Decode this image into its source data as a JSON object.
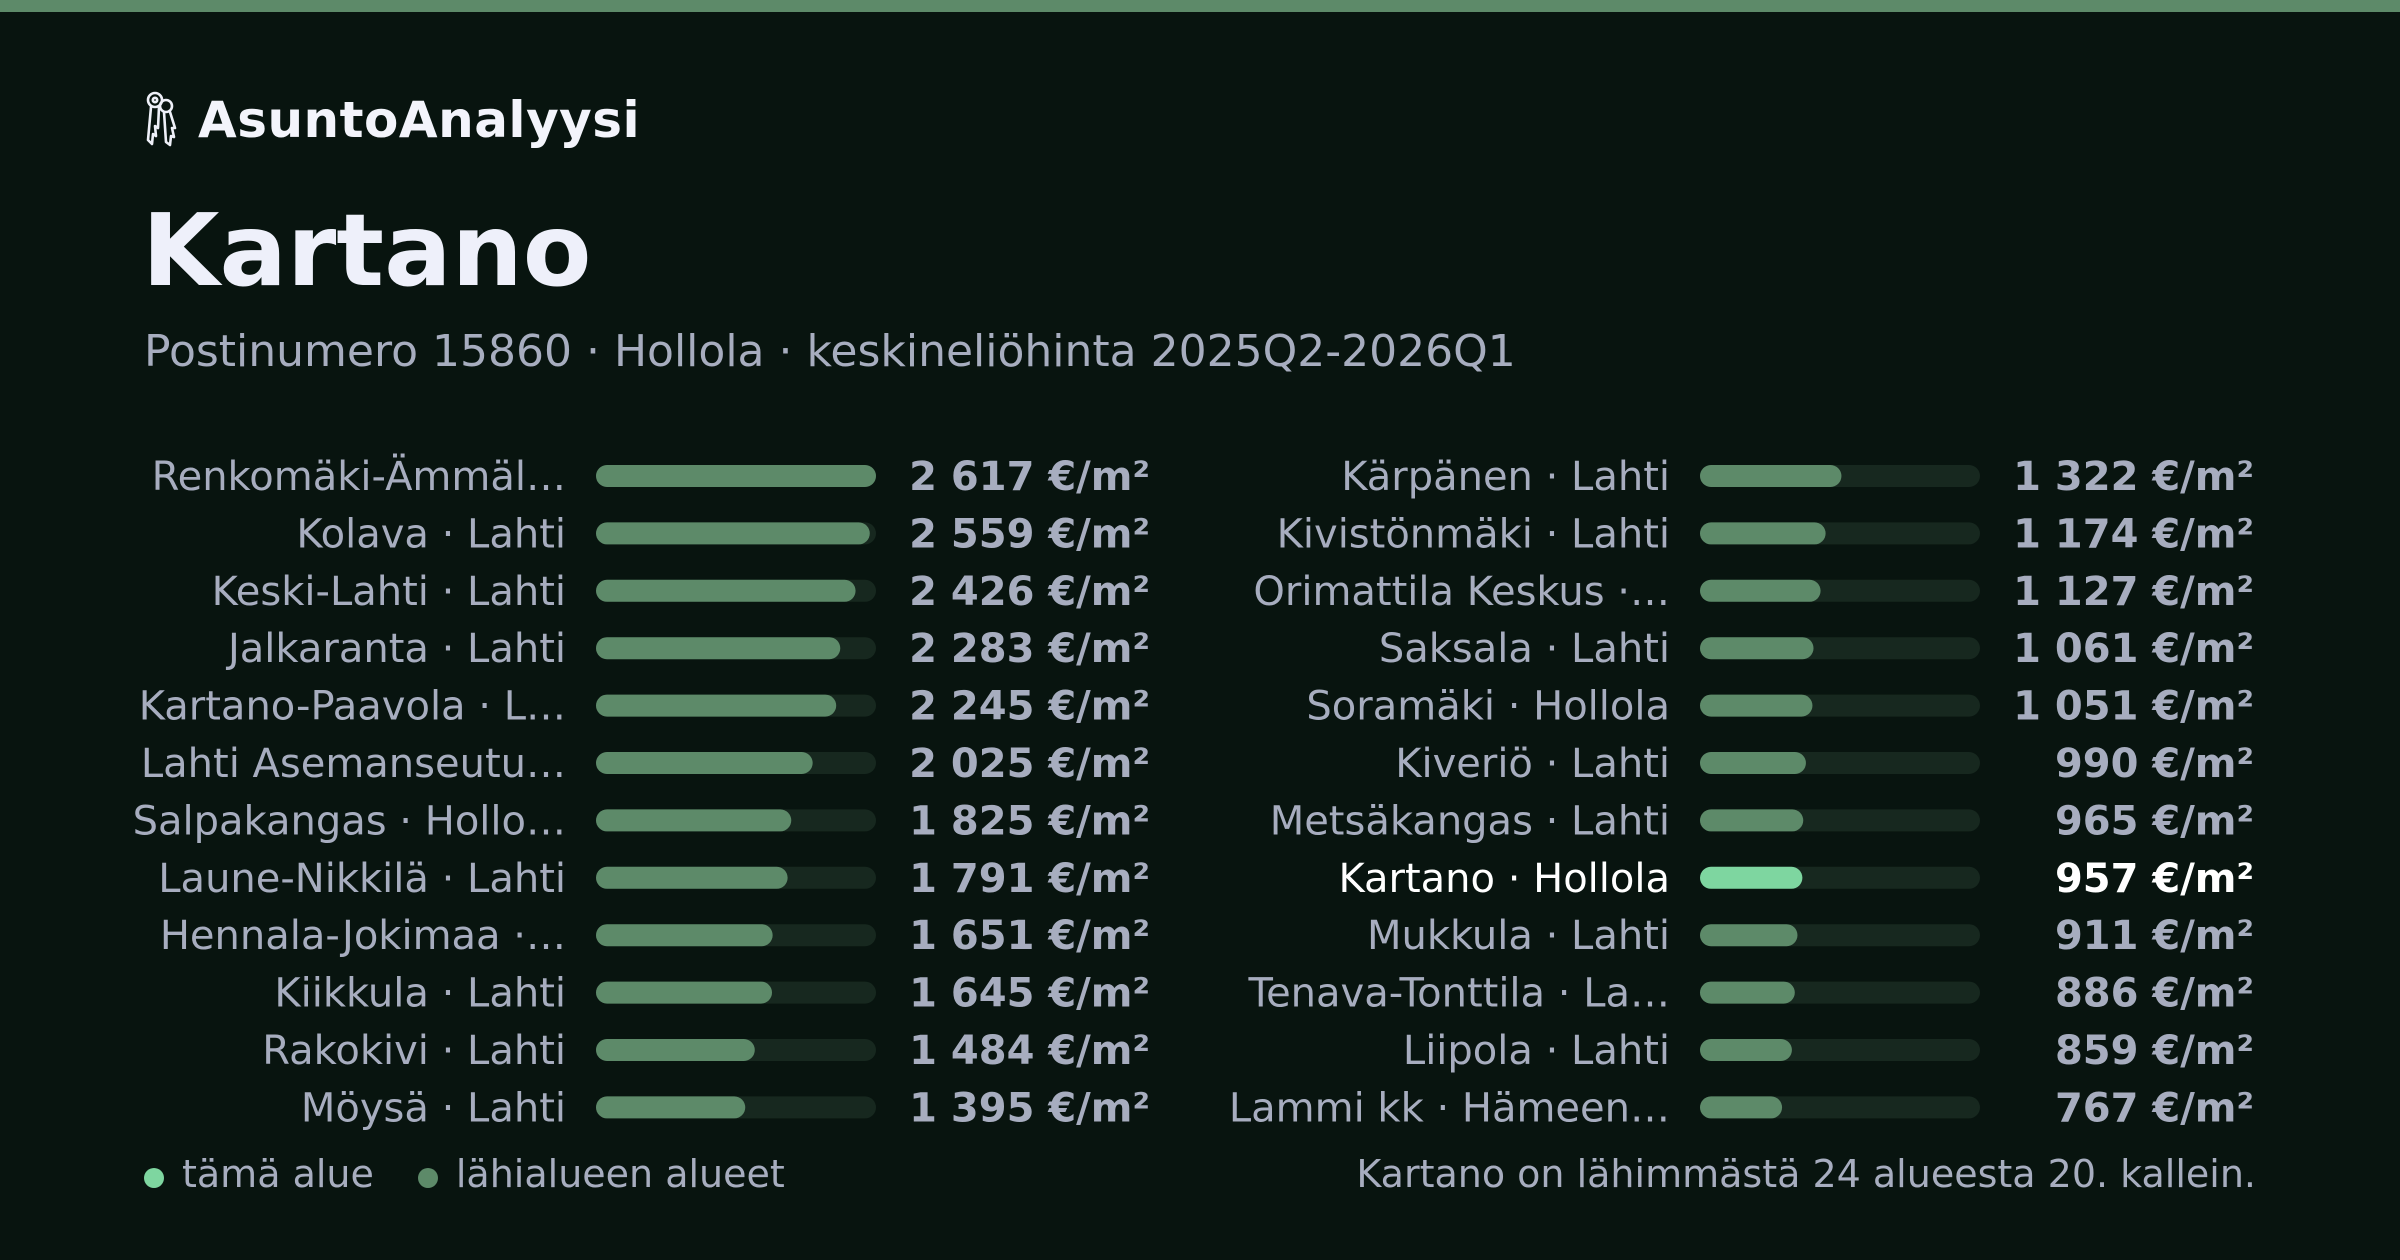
{
  "brand": {
    "name": "AsuntoAnalyysi",
    "icon": "keys-icon"
  },
  "header": {
    "title": "Kartano",
    "subtitle": "Postinumero 15860 · Hollola · keskineliöhinta 2025Q2-2026Q1"
  },
  "colors": {
    "accent_top": "#5d8a69",
    "bar_neighbor": "#5d8a69",
    "bar_this": "#7ed6a0",
    "track": "#17281f",
    "label": "#a7adbf",
    "value": "#a7adbf",
    "highlight_text": "#ffffff"
  },
  "chart_data": {
    "type": "bar",
    "orientation": "horizontal",
    "unit": "€/m²",
    "xlim": [
      0,
      2617
    ],
    "highlight": "Kartano · Hollola",
    "categories": [
      "Renkomäki-Ämmäl…",
      "Kolava · Lahti",
      "Keski-Lahti · Lahti",
      "Jalkaranta · Lahti",
      "Kartano-Paavola · L…",
      "Lahti Asemanseutu…",
      "Salpakangas · Hollo…",
      "Laune-Nikkilä · Lahti",
      "Hennala-Jokimaa ·…",
      "Kiikkula · Lahti",
      "Rakokivi · Lahti",
      "Möysä · Lahti",
      "Kärpänen · Lahti",
      "Kivistönmäki · Lahti",
      "Orimattila Keskus ·…",
      "Saksala · Lahti",
      "Soramäki · Hollola",
      "Kiveriö · Lahti",
      "Metsäkangas · Lahti",
      "Kartano · Hollola",
      "Mukkula · Lahti",
      "Tenava-Tonttila · La…",
      "Liipola · Lahti",
      "Lammi kk · Hämeen…"
    ],
    "values": [
      2617,
      2559,
      2426,
      2283,
      2245,
      2025,
      1825,
      1791,
      1651,
      1645,
      1484,
      1395,
      1322,
      1174,
      1127,
      1061,
      1051,
      990,
      965,
      957,
      911,
      886,
      859,
      767
    ],
    "value_labels": [
      "2 617 €/m²",
      "2 559 €/m²",
      "2 426 €/m²",
      "2 283 €/m²",
      "2 245 €/m²",
      "2 025 €/m²",
      "1 825 €/m²",
      "1 791 €/m²",
      "1 651 €/m²",
      "1 645 €/m²",
      "1 484 €/m²",
      "1 395 €/m²",
      "1 322 €/m²",
      "1 174 €/m²",
      "1 127 €/m²",
      "1 061 €/m²",
      "1 051 €/m²",
      "990 €/m²",
      "965 €/m²",
      "957 €/m²",
      "911 €/m²",
      "886 €/m²",
      "859 €/m²",
      "767 €/m²"
    ]
  },
  "legend": {
    "this_area": "tämä alue",
    "nearby_areas": "lähialueen alueet"
  },
  "footnote": "Kartano on lähimmästä 24 alueesta 20. kallein."
}
